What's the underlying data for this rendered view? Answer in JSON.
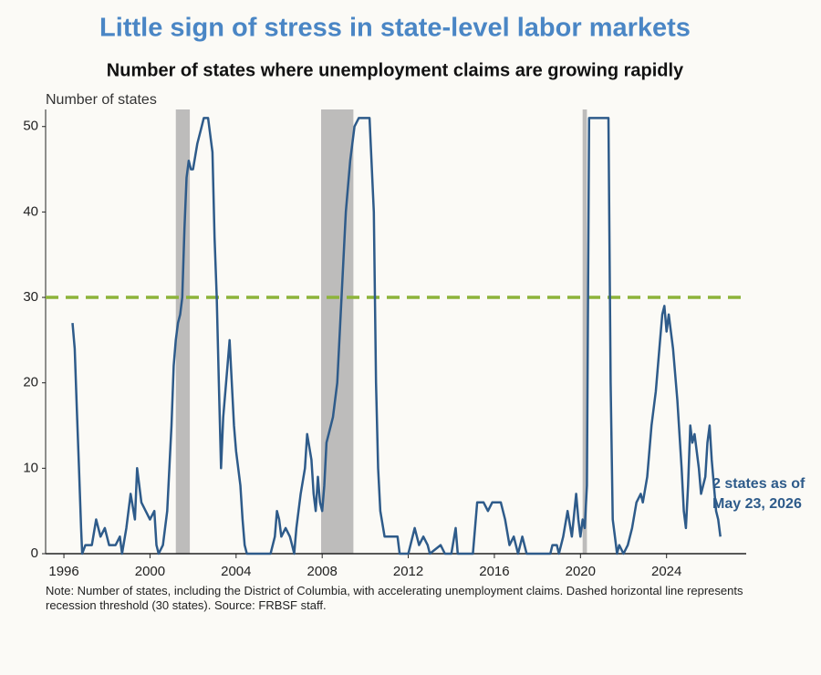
{
  "chart_data": {
    "type": "line",
    "title": "Little sign of stress in state-level labor markets",
    "subtitle": "Number of states where unemployment claims are growing rapidly",
    "y_label": "Number of states",
    "note": "Note: Number of states, including the District of Columbia, with accelerating unemployment claims. Dashed horizontal line represents recession threshold (30 states). Source: FRBSF staff.",
    "annotation": [
      "2 states as of",
      "May 23, 2026"
    ],
    "xlim": [
      1995.15,
      2027.7
    ],
    "xticks": [
      1996,
      2000,
      2004,
      2008,
      2012,
      2016,
      2020,
      2024
    ],
    "ylim": [
      0,
      52
    ],
    "yticks": [
      0,
      10,
      20,
      30,
      40,
      50
    ],
    "threshold": {
      "value": 30,
      "color": "#8db33a"
    },
    "recessions": [
      [
        2001.2,
        2001.85
      ],
      [
        2007.95,
        2009.45
      ],
      [
        2020.1,
        2020.3
      ]
    ],
    "recession_color": "#bdbcbb",
    "x": [
      1996.4,
      1996.5,
      1996.6,
      1996.7,
      1996.8,
      1996.85,
      1997.0,
      1997.3,
      1997.5,
      1997.7,
      1997.9,
      1998.1,
      1998.4,
      1998.6,
      1998.7,
      1998.9,
      1999.1,
      1999.3,
      1999.4,
      1999.6,
      1999.8,
      2000.0,
      2000.2,
      2000.3,
      2000.4,
      2000.6,
      2000.8,
      2001.0,
      2001.1,
      2001.2,
      2001.3,
      2001.4,
      2001.5,
      2001.6,
      2001.7,
      2001.8,
      2001.9,
      2002.0,
      2002.2,
      2002.4,
      2002.5,
      2002.7,
      2002.9,
      2003.0,
      2003.1,
      2003.2,
      2003.3,
      2003.4,
      2003.6,
      2003.7,
      2003.8,
      2003.9,
      2004.0,
      2004.2,
      2004.3,
      2004.4,
      2004.5,
      2005.6,
      2005.8,
      2005.9,
      2006.0,
      2006.1,
      2006.3,
      2006.5,
      2006.6,
      2006.7,
      2006.8,
      2007.0,
      2007.2,
      2007.3,
      2007.5,
      2007.6,
      2007.7,
      2007.8,
      2007.9,
      2008.0,
      2008.1,
      2008.2,
      2008.3,
      2008.5,
      2008.7,
      2008.9,
      2009.1,
      2009.3,
      2009.5,
      2009.7,
      2010.0,
      2010.2,
      2010.4,
      2010.5,
      2010.6,
      2010.7,
      2010.9,
      2011.5,
      2011.6,
      2012.0,
      2012.3,
      2012.5,
      2012.7,
      2012.9,
      2013.0,
      2013.5,
      2013.7,
      2014.0,
      2014.2,
      2014.3,
      2015.0,
      2015.2,
      2015.5,
      2015.7,
      2015.9,
      2016.3,
      2016.5,
      2016.7,
      2016.9,
      2017.1,
      2017.3,
      2017.5,
      2018.6,
      2018.7,
      2018.9,
      2019.0,
      2019.2,
      2019.4,
      2019.6,
      2019.8,
      2019.9,
      2020.0,
      2020.1,
      2020.2,
      2020.3,
      2020.4,
      2021.3,
      2021.4,
      2021.5,
      2021.6,
      2021.7,
      2021.8,
      2022.0,
      2022.2,
      2022.4,
      2022.6,
      2022.8,
      2022.9,
      2023.1,
      2023.3,
      2023.5,
      2023.7,
      2023.8,
      2023.9,
      2024.0,
      2024.1,
      2024.3,
      2024.5,
      2024.7,
      2024.8,
      2024.9,
      2025.0,
      2025.1,
      2025.2,
      2025.3,
      2025.5,
      2025.6,
      2025.8,
      2025.9,
      2026.0,
      2026.1,
      2026.2,
      2026.3,
      2026.4,
      2026.5
    ],
    "series": [
      {
        "color": "#2e5b8a",
        "values": [
          27,
          24,
          17,
          10,
          3,
          0,
          1,
          1,
          4,
          2,
          3,
          1,
          1,
          2,
          0,
          3,
          7,
          4,
          10,
          6,
          5,
          4,
          5,
          1,
          0,
          1,
          5,
          15,
          22,
          25,
          27,
          28,
          30,
          38,
          44,
          46,
          45,
          45,
          48,
          50,
          51,
          51,
          47,
          37,
          30,
          20,
          10,
          16,
          22,
          25,
          20,
          15,
          12,
          8,
          4,
          1,
          0,
          0,
          2,
          5,
          4,
          2,
          3,
          2,
          1,
          0,
          3,
          7,
          10,
          14,
          11,
          7,
          5,
          9,
          6,
          5,
          8,
          13,
          14,
          16,
          20,
          30,
          40,
          46,
          50,
          51,
          51,
          51,
          40,
          20,
          10,
          5,
          2,
          2,
          0,
          0,
          3,
          1,
          2,
          1,
          0,
          1,
          0,
          0,
          3,
          0,
          0,
          6,
          6,
          5,
          6,
          6,
          4,
          1,
          2,
          0,
          2,
          0,
          0,
          1,
          1,
          0,
          2,
          5,
          2,
          7,
          4,
          2,
          4,
          3,
          8,
          51,
          51,
          20,
          4,
          2,
          0,
          1,
          0,
          1,
          3,
          6,
          7,
          6,
          9,
          15,
          19,
          25,
          28,
          29,
          26,
          28,
          24,
          18,
          10,
          5,
          3,
          8,
          15,
          13,
          14,
          10,
          7,
          9,
          13,
          15,
          11,
          8,
          5,
          4,
          2
        ]
      }
    ]
  }
}
